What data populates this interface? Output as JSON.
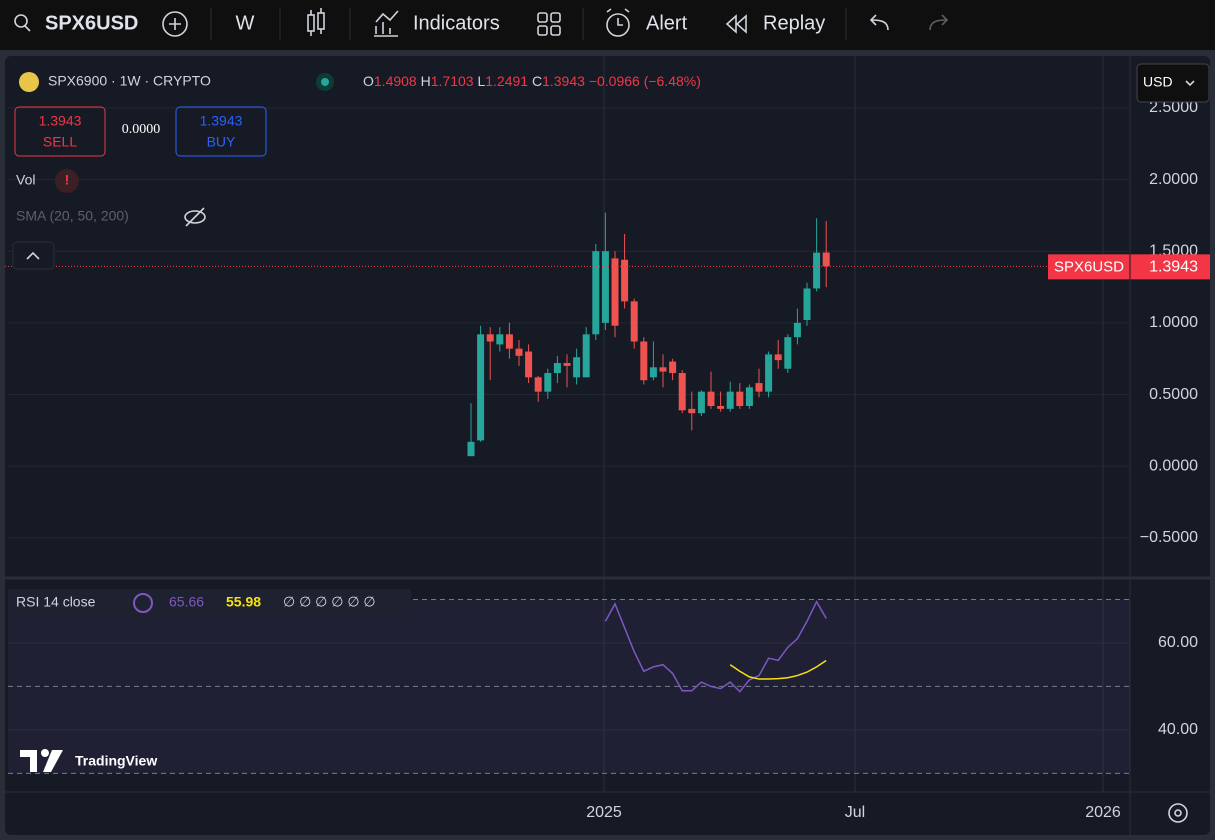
{
  "toolbar": {
    "symbol": "SPX6USD",
    "interval": "W",
    "indicators": "Indicators",
    "alert": "Alert",
    "replay": "Replay"
  },
  "legend": {
    "title": "SPX6900 · 1W · CRYPTO",
    "o": "O",
    "h": "H",
    "l": "L",
    "c": "C",
    "change": "−0.0966",
    "change_pct": "(−6.48%)",
    "sell": "SELL",
    "buy": "BUY",
    "spread": "0.0000",
    "vol": "Vol",
    "sma": "SMA (20, 50, 200)",
    "rsi": "RSI 14 close",
    "rsi_extra": "∅ ∅ ∅ ∅ ∅ ∅"
  },
  "currency": "USD",
  "price_tag": "SPX6USD",
  "logo": "TradingView",
  "time_labels": [
    "2025",
    "Jul",
    "2026"
  ],
  "chart_data": [
    {
      "type": "candlestick",
      "categories": [
        null,
        null,
        null,
        null,
        null,
        null,
        null,
        null,
        null,
        null,
        null,
        null,
        null,
        null,
        null,
        null,
        null,
        null,
        null,
        null,
        null,
        null,
        null,
        null,
        null,
        null,
        null,
        null,
        null,
        null,
        null,
        null,
        null,
        null,
        null,
        null,
        null,
        null
      ],
      "open": [
        0.07,
        0.18,
        0.92,
        0.85,
        0.92,
        0.82,
        0.8,
        0.62,
        0.52,
        0.65,
        0.72,
        0.62,
        0.62,
        0.92,
        1.0,
        1.45,
        1.44,
        1.15,
        0.87,
        0.62,
        0.69,
        0.73,
        0.65,
        0.4,
        0.37,
        0.52,
        0.42,
        0.4,
        0.52,
        0.42,
        0.58,
        0.52,
        0.78,
        0.68,
        0.9,
        1.02,
        1.24,
        1.4908
      ],
      "high": [
        0.44,
        0.98,
        0.97,
        0.97,
        1.0,
        0.88,
        0.85,
        0.63,
        0.68,
        0.77,
        0.78,
        0.82,
        0.97,
        1.55,
        1.77,
        1.5,
        1.62,
        1.17,
        0.9,
        0.87,
        0.78,
        0.75,
        0.67,
        0.52,
        0.53,
        0.66,
        0.52,
        0.59,
        0.58,
        0.57,
        0.68,
        0.8,
        0.88,
        0.92,
        1.1,
        1.28,
        1.73,
        1.7103
      ],
      "low": [
        0.07,
        0.17,
        0.6,
        0.8,
        0.75,
        0.7,
        0.58,
        0.45,
        0.47,
        0.58,
        0.55,
        0.57,
        0.62,
        0.88,
        0.95,
        0.9,
        1.1,
        0.82,
        0.57,
        0.6,
        0.55,
        0.6,
        0.37,
        0.25,
        0.35,
        0.4,
        0.38,
        0.38,
        0.4,
        0.4,
        0.48,
        0.48,
        0.68,
        0.65,
        0.85,
        0.98,
        1.22,
        1.2491
      ],
      "close": [
        0.17,
        0.92,
        0.87,
        0.92,
        0.82,
        0.77,
        0.62,
        0.52,
        0.65,
        0.72,
        0.7,
        0.76,
        0.92,
        1.5,
        1.5,
        0.98,
        1.15,
        0.87,
        0.6,
        0.69,
        0.66,
        0.65,
        0.39,
        0.37,
        0.52,
        0.42,
        0.4,
        0.52,
        0.42,
        0.55,
        0.52,
        0.78,
        0.74,
        0.9,
        1.0,
        1.24,
        1.49,
        1.3943
      ],
      "up_color": "#26a69a",
      "down_color": "#ef5350",
      "ylim": [
        -0.78,
        2.82
      ],
      "yticks": [
        {
          "value": -0.5,
          "label": "−0.5000"
        },
        {
          "value": 0,
          "label": "0.0000"
        },
        {
          "value": 0.5,
          "label": "0.5000"
        },
        {
          "value": 1,
          "label": "1.0000"
        },
        {
          "value": 1.5,
          "label": "1.5000"
        },
        {
          "value": 2,
          "label": "2.0000"
        },
        {
          "value": 2.5,
          "label": "2.5000"
        }
      ],
      "grid": true,
      "last_price_line": true
    },
    {
      "type": "line",
      "categories": [
        null,
        null,
        null,
        null,
        null,
        null,
        null,
        null,
        null,
        null,
        null,
        null,
        null,
        null,
        null,
        null,
        null,
        null,
        null,
        null,
        null,
        null,
        null,
        null,
        null,
        null,
        null,
        null,
        null,
        null,
        null,
        null,
        null,
        null,
        null,
        null,
        null,
        null
      ],
      "series": [
        {
          "color": "#7e57c2",
          "values": [
            null,
            null,
            null,
            null,
            null,
            null,
            null,
            null,
            null,
            null,
            null,
            null,
            null,
            null,
            65,
            69,
            63.5,
            58,
            53.5,
            54.5,
            55,
            53,
            49,
            49,
            51,
            50,
            49.5,
            51,
            48.8,
            51.5,
            52.5,
            56.5,
            56,
            59,
            61,
            65,
            69.5,
            65.66
          ]
        },
        {
          "color": "#f7e10f",
          "values": [
            null,
            null,
            null,
            null,
            null,
            null,
            null,
            null,
            null,
            null,
            null,
            null,
            null,
            null,
            null,
            null,
            null,
            null,
            null,
            null,
            null,
            null,
            null,
            null,
            null,
            null,
            null,
            55,
            53.5,
            52.2,
            51.7,
            51.7,
            51.8,
            52,
            52.5,
            53.3,
            54.5,
            55.98
          ]
        }
      ],
      "ylim": [
        25.7,
        74.5
      ],
      "yticks": [
        {
          "value": 40,
          "label": "40.00"
        },
        {
          "value": 60,
          "label": "60.00"
        }
      ],
      "levels": [
        70,
        50,
        30
      ],
      "band_color": "#7e57c2",
      "grid": true
    }
  ]
}
